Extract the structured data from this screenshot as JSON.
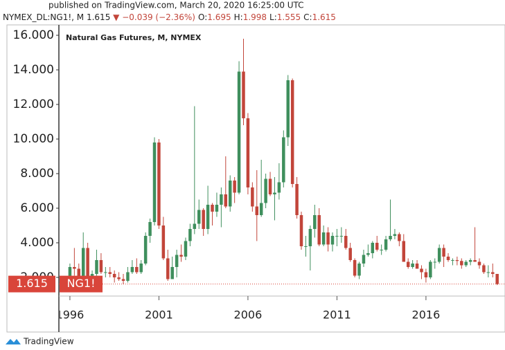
{
  "header": {
    "published": "published on TradingView.com, March 20, 2020 16:25:00 UTC",
    "symbol": "NYMEX_DL:NG1!, M",
    "last": "1.615",
    "change": "▼ −0.039 (−2.36%)",
    "ohlc": [
      {
        "label": "O:",
        "value": "1.695"
      },
      {
        "label": "H:",
        "value": "1.998"
      },
      {
        "label": "L:",
        "value": "1.555"
      },
      {
        "label": "C:",
        "value": "1.615"
      }
    ],
    "brand": "TradingView"
  },
  "chart_data": {
    "type": "candlestick",
    "title": "Natural Gas Futures, M, NYMEX",
    "up_color": "#3f8f5d",
    "down_color": "#c2453a",
    "last_price": 1.615,
    "symbol_tag": "NG1!",
    "price_color": "#d9453a",
    "xlim": [
      1995.38,
      2020.44
    ],
    "xticks": [
      1996,
      2001,
      2006,
      2011,
      2016
    ],
    "ylim": [
      0.92,
      16.6
    ],
    "yticks": [
      {
        "value": 2,
        "label": "2.000"
      },
      {
        "value": 4,
        "label": "4.000"
      },
      {
        "value": 6,
        "label": "6.000"
      },
      {
        "value": 8,
        "label": "8.000"
      },
      {
        "value": 10,
        "label": "10.000"
      },
      {
        "value": 12,
        "label": "12.000"
      },
      {
        "value": 14,
        "label": "14.000"
      },
      {
        "value": 16,
        "label": "16.000"
      }
    ],
    "grid": false,
    "x": [
      1996,
      1996.25,
      1996.5,
      1996.75,
      1997,
      1997.25,
      1997.5,
      1997.75,
      1998,
      1998.25,
      1998.5,
      1998.75,
      1999,
      1999.25,
      1999.5,
      1999.75,
      2000,
      2000.25,
      2000.5,
      2000.75,
      2001,
      2001.25,
      2001.5,
      2001.75,
      2002,
      2002.25,
      2002.5,
      2002.75,
      2003,
      2003.25,
      2003.5,
      2003.75,
      2004,
      2004.25,
      2004.5,
      2004.75,
      2005,
      2005.25,
      2005.5,
      2005.75,
      2006,
      2006.25,
      2006.5,
      2006.75,
      2007,
      2007.25,
      2007.5,
      2007.75,
      2008,
      2008.25,
      2008.5,
      2008.75,
      2009,
      2009.25,
      2009.5,
      2009.75,
      2010,
      2010.25,
      2010.5,
      2010.75,
      2011,
      2011.25,
      2011.5,
      2011.75,
      2012,
      2012.25,
      2012.5,
      2012.75,
      2013,
      2013.25,
      2013.5,
      2013.75,
      2014,
      2014.25,
      2014.5,
      2014.75,
      2015,
      2015.25,
      2015.5,
      2015.75,
      2016,
      2016.25,
      2016.5,
      2016.75,
      2017,
      2017.25,
      2017.5,
      2017.75,
      2018,
      2018.25,
      2018.5,
      2018.75,
      2019,
      2019.25,
      2019.5,
      2019.75,
      2020
    ],
    "open": [
      2.0,
      2.6,
      2.5,
      2.0,
      3.7,
      2.0,
      2.2,
      3.0,
      2.3,
      2.3,
      2.2,
      2.0,
      1.9,
      1.8,
      2.3,
      2.6,
      2.3,
      2.8,
      4.4,
      5.2,
      9.8,
      5.0,
      3.1,
      1.9,
      2.6,
      3.3,
      3.2,
      4.1,
      4.8,
      5.1,
      5.9,
      4.8,
      6.2,
      5.8,
      6.2,
      6.8,
      6.1,
      7.6,
      6.9,
      13.9,
      11.2,
      7.2,
      6.1,
      5.6,
      6.3,
      7.7,
      6.8,
      6.9,
      7.5,
      10.1,
      13.4,
      7.4,
      5.6,
      3.8,
      3.8,
      4.8,
      5.6,
      3.9,
      4.6,
      3.9,
      4.4,
      4.4,
      4.4,
      3.7,
      3.0,
      2.1,
      2.8,
      3.3,
      3.4,
      4.0,
      3.6,
      3.6,
      4.2,
      4.4,
      4.5,
      4.1,
      2.9,
      2.6,
      2.8,
      2.5,
      2.3,
      2.0,
      2.9,
      2.9,
      3.7,
      3.2,
      3.0,
      3.0,
      2.95,
      2.7,
      2.9,
      3.0,
      2.9,
      2.7,
      2.3,
      2.3,
      2.2
    ],
    "high": [
      2.8,
      3.7,
      2.8,
      4.6,
      4.0,
      2.4,
      3.6,
      3.4,
      2.6,
      2.6,
      2.4,
      2.3,
      2.2,
      2.6,
      3.0,
      3.1,
      3.0,
      4.6,
      5.4,
      10.1,
      10.0,
      5.5,
      3.6,
      3.2,
      3.6,
      3.9,
      4.3,
      5.1,
      11.9,
      6.5,
      6.0,
      7.3,
      6.3,
      6.9,
      7.2,
      9.0,
      7.9,
      7.8,
      14.5,
      15.8,
      11.5,
      7.5,
      8.2,
      8.8,
      8.0,
      8.1,
      7.8,
      8.6,
      10.5,
      13.7,
      13.5,
      7.8,
      5.8,
      4.4,
      5.0,
      6.2,
      6.0,
      5.0,
      4.9,
      4.6,
      4.8,
      4.9,
      4.8,
      4.0,
      3.1,
      2.9,
      3.6,
      3.9,
      4.1,
      4.4,
      3.9,
      4.4,
      6.5,
      4.8,
      4.6,
      4.5,
      3.1,
      3.0,
      3.0,
      2.7,
      2.5,
      3.0,
      3.1,
      3.9,
      3.9,
      3.4,
      3.1,
      3.2,
      3.1,
      3.0,
      3.1,
      4.9,
      3.1,
      2.8,
      2.7,
      2.8,
      2.2
    ],
    "low": [
      1.9,
      2.1,
      1.9,
      2.0,
      1.8,
      1.9,
      2.1,
      2.2,
      2.0,
      2.0,
      1.7,
      1.8,
      1.6,
      1.7,
      2.2,
      2.2,
      2.2,
      2.7,
      4.0,
      5.0,
      4.8,
      3.0,
      1.8,
      1.9,
      2.0,
      2.9,
      3.0,
      3.8,
      4.5,
      4.8,
      4.4,
      4.5,
      5.0,
      5.5,
      4.9,
      6.0,
      5.8,
      6.3,
      6.8,
      10.8,
      6.8,
      5.8,
      4.1,
      5.5,
      6.0,
      6.7,
      5.3,
      6.5,
      7.2,
      9.6,
      7.2,
      5.4,
      3.6,
      3.2,
      2.4,
      4.3,
      3.8,
      3.8,
      3.5,
      3.5,
      3.8,
      4.0,
      3.6,
      2.9,
      2.0,
      1.9,
      2.6,
      3.2,
      3.1,
      3.5,
      3.3,
      3.5,
      4.1,
      4.2,
      3.8,
      2.9,
      2.5,
      2.5,
      2.5,
      1.9,
      1.7,
      1.9,
      2.5,
      2.8,
      2.6,
      2.9,
      2.7,
      2.7,
      2.5,
      2.6,
      2.7,
      2.9,
      2.5,
      2.2,
      2.0,
      2.0,
      1.555
    ],
    "close": [
      2.6,
      2.5,
      2.0,
      3.7,
      2.0,
      2.2,
      3.0,
      2.3,
      2.3,
      2.2,
      2.0,
      1.9,
      1.8,
      2.3,
      2.6,
      2.3,
      2.8,
      4.4,
      5.2,
      9.8,
      5.0,
      3.1,
      1.9,
      2.6,
      3.3,
      3.2,
      4.1,
      4.8,
      5.1,
      5.9,
      4.8,
      6.2,
      5.8,
      6.2,
      6.8,
      6.1,
      7.6,
      6.9,
      13.9,
      11.2,
      7.2,
      6.1,
      5.6,
      6.3,
      7.7,
      6.8,
      6.9,
      7.5,
      10.1,
      13.4,
      7.4,
      5.6,
      3.8,
      3.8,
      4.8,
      5.6,
      3.9,
      4.6,
      3.9,
      4.4,
      4.4,
      4.4,
      3.7,
      3.0,
      2.1,
      2.8,
      3.3,
      3.4,
      4.0,
      3.6,
      3.6,
      4.2,
      4.4,
      4.5,
      4.1,
      2.9,
      2.6,
      2.8,
      2.5,
      2.3,
      2.0,
      2.9,
      2.9,
      3.7,
      3.2,
      3.0,
      3.0,
      2.95,
      2.7,
      2.9,
      3.0,
      2.9,
      2.7,
      2.3,
      2.3,
      2.2,
      1.615
    ]
  }
}
